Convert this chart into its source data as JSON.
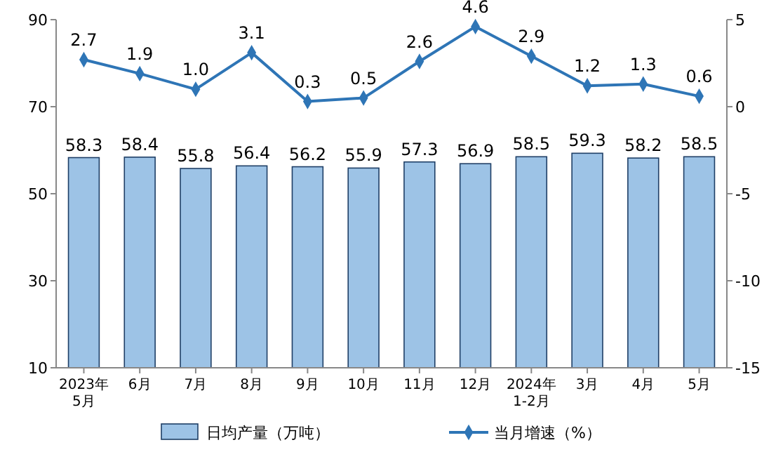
{
  "chart_data": {
    "type": "bar",
    "categories": [
      "2023年\n5月",
      "6月",
      "7月",
      "8月",
      "9月",
      "10月",
      "11月",
      "12月",
      "2024年\n1-2月",
      "3月",
      "4月",
      "5月"
    ],
    "series": [
      {
        "name": "日均产量（万吨）",
        "color": "#9dc3e6",
        "values": [
          58.3,
          58.4,
          55.8,
          56.4,
          56.2,
          55.9,
          57.3,
          56.9,
          58.5,
          59.3,
          58.2,
          58.5
        ]
      },
      {
        "name": "当月增速（%）",
        "type": "line",
        "axis": "y2",
        "color": "#2e75b6",
        "marker": "diamond",
        "values": [
          2.7,
          1.9,
          1.0,
          3.1,
          0.3,
          0.5,
          2.6,
          4.6,
          2.9,
          1.2,
          1.3,
          0.6
        ],
        "value_labels": [
          "2.7",
          "1.9",
          "1.0",
          "3.1",
          "0.3",
          "0.5",
          "2.6",
          "4.6",
          "2.9",
          "1.2",
          "1.3",
          "0.6"
        ]
      }
    ],
    "ylim": [
      10,
      90
    ],
    "yticks": [
      10,
      30,
      50,
      70,
      90
    ],
    "y2lim": [
      -15,
      5
    ],
    "y2ticks": [
      -15,
      -10,
      -5,
      0,
      5
    ],
    "data_labels": true,
    "legend": "bottom",
    "grid": false
  }
}
